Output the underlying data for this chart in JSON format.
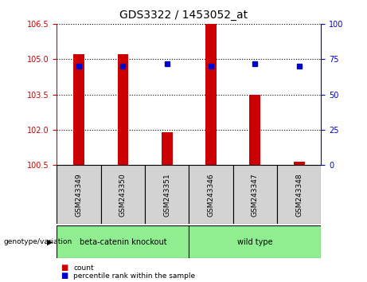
{
  "title": "GDS3322 / 1453052_at",
  "samples": [
    "GSM243349",
    "GSM243350",
    "GSM243351",
    "GSM243346",
    "GSM243347",
    "GSM243348"
  ],
  "count_values": [
    105.2,
    105.2,
    101.9,
    106.5,
    103.5,
    100.65
  ],
  "percentile_values": [
    70,
    70,
    72,
    70,
    72,
    70
  ],
  "ylim_left": [
    100.5,
    106.5
  ],
  "ylim_right": [
    0,
    100
  ],
  "yticks_left": [
    100.5,
    102,
    103.5,
    105,
    106.5
  ],
  "yticks_right": [
    0,
    25,
    50,
    75,
    100
  ],
  "bar_color": "#cc0000",
  "dot_color": "#0000cc",
  "group1_label": "beta-catenin knockout",
  "group2_label": "wild type",
  "group1_color": "#90ee90",
  "group2_color": "#90ee90",
  "group1_indices": [
    0,
    1,
    2
  ],
  "group2_indices": [
    3,
    4,
    5
  ],
  "legend_count_label": "count",
  "legend_pct_label": "percentile rank within the sample",
  "genotype_label": "genotype/variation",
  "bar_width": 0.25,
  "base_value": 100.5,
  "right_axis_color": "#0000cc",
  "left_axis_color": "#cc0000"
}
